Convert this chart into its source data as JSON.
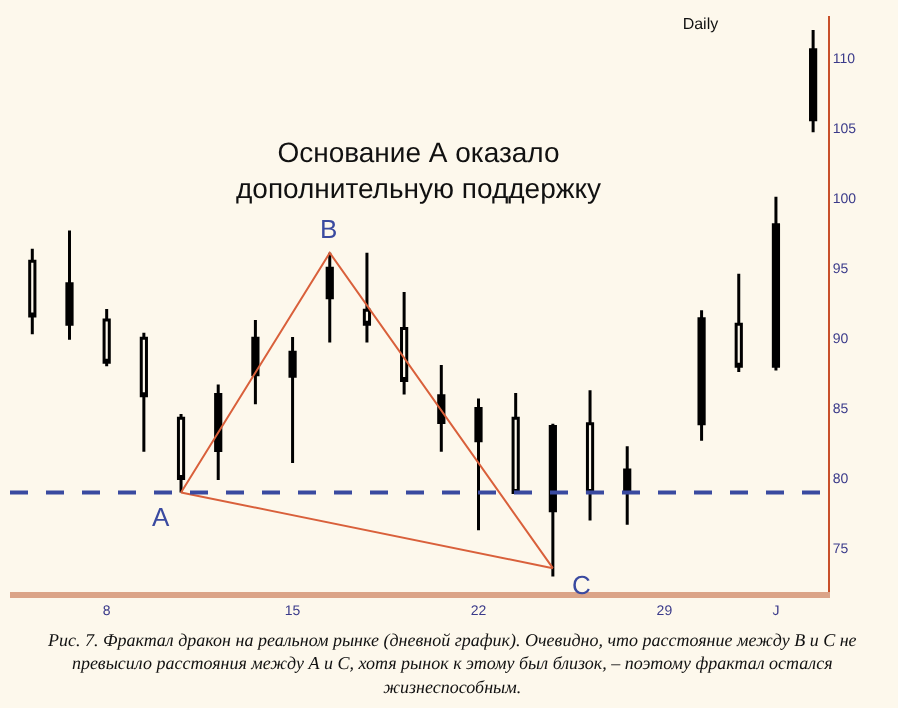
{
  "chart_data": {
    "type": "candlestick",
    "title": "Daily",
    "categories": [
      null,
      null,
      "8",
      null,
      null,
      null,
      null,
      "15",
      null,
      null,
      null,
      null,
      "22",
      null,
      null,
      null,
      null,
      "29",
      null,
      null,
      "J",
      null
    ],
    "ohlc": [
      [
        95.5,
        96.4,
        90.3,
        91.6
      ],
      [
        91,
        97.7,
        89.9,
        93.9
      ],
      [
        91.3,
        92.1,
        88,
        88.3
      ],
      [
        90,
        90.4,
        81.9,
        85.9
      ],
      [
        84.3,
        84.6,
        79,
        80
      ],
      [
        82,
        86.7,
        79.9,
        86
      ],
      [
        87.4,
        91.3,
        85.3,
        90
      ],
      [
        87.3,
        90.1,
        81.1,
        89
      ],
      [
        92.9,
        96.1,
        89.7,
        95
      ],
      [
        92,
        96.1,
        89.7,
        91
      ],
      [
        90.7,
        93.3,
        86,
        87
      ],
      [
        84,
        88.1,
        81.9,
        85.9
      ],
      [
        82.7,
        85.7,
        76.3,
        85
      ],
      [
        84.3,
        86.1,
        78.9,
        79
      ],
      [
        77.7,
        83.9,
        73,
        83.7
      ],
      [
        83.9,
        86.3,
        77,
        79
      ],
      [
        79,
        82.3,
        76.7,
        80.6
      ],
      null,
      [
        83.9,
        92,
        82.7,
        91.4
      ],
      [
        91,
        94.6,
        87.6,
        88
      ],
      [
        88,
        100.1,
        87.7,
        98.1
      ],
      [
        105.6,
        112,
        104.7,
        110.6
      ]
    ],
    "color": "#000000",
    "series": [
      {
        "type": "line",
        "color": "#d9603b",
        "values": [
          null,
          null,
          null,
          null,
          79,
          null,
          null,
          null,
          96.1,
          null,
          null,
          null,
          null,
          null,
          73.6,
          null,
          null,
          null,
          null,
          null,
          null,
          null
        ],
        "line_style": "solid"
      },
      {
        "type": "line",
        "color": "#d9603b",
        "values": [
          null,
          null,
          null,
          null,
          79,
          null,
          null,
          null,
          null,
          null,
          null,
          null,
          null,
          null,
          73.6,
          null,
          null,
          null,
          null,
          null,
          null,
          null
        ],
        "line_style": "solid"
      }
    ],
    "ref_lines": [
      {
        "axis": "y",
        "value": 79,
        "color": "#3a4aa0",
        "line_style": "dashed"
      }
    ],
    "ylim": [
      71.9,
      113
    ],
    "yticks": [
      75,
      80,
      85,
      90,
      95,
      100,
      105,
      110
    ],
    "grid": false,
    "annotations": [
      "Основание А оказало дополнительную поддержку",
      "Рис. 7. Фрактал дракон на реальном рынке (дневной график). Очевидно, что расстояние между В и С не превысило расстояния между А и С, хотя рынок к этому был близок, – поэтому фрактал остался жизнеспособным.",
      "A",
      "B",
      "C"
    ]
  }
}
